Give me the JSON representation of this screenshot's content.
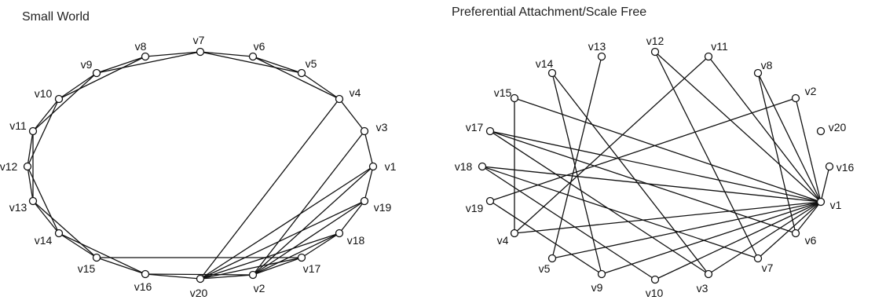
{
  "graphs": {
    "small_world": {
      "title": "Small World",
      "nodes": [
        "v1",
        "v2",
        "v3",
        "v4",
        "v5",
        "v6",
        "v7",
        "v8",
        "v9",
        "v10",
        "v11",
        "v12",
        "v13",
        "v14",
        "v15",
        "v16",
        "v17",
        "v18",
        "v19",
        "v20"
      ],
      "edges": [
        [
          "v1",
          "v3"
        ],
        [
          "v3",
          "v4"
        ],
        [
          "v4",
          "v5"
        ],
        [
          "v5",
          "v6"
        ],
        [
          "v6",
          "v7"
        ],
        [
          "v7",
          "v8"
        ],
        [
          "v8",
          "v9"
        ],
        [
          "v9",
          "v10"
        ],
        [
          "v10",
          "v11"
        ],
        [
          "v11",
          "v12"
        ],
        [
          "v12",
          "v13"
        ],
        [
          "v13",
          "v14"
        ],
        [
          "v14",
          "v15"
        ],
        [
          "v15",
          "v16"
        ],
        [
          "v16",
          "v20"
        ],
        [
          "v20",
          "v2"
        ],
        [
          "v2",
          "v17"
        ],
        [
          "v17",
          "v18"
        ],
        [
          "v18",
          "v19"
        ],
        [
          "v19",
          "v1"
        ],
        [
          "v7",
          "v9"
        ],
        [
          "v8",
          "v10"
        ],
        [
          "v6",
          "v4"
        ],
        [
          "v7",
          "v5"
        ],
        [
          "v9",
          "v11"
        ],
        [
          "v10",
          "v12"
        ],
        [
          "v11",
          "v13"
        ],
        [
          "v12",
          "v14"
        ],
        [
          "v13",
          "v15"
        ],
        [
          "v14",
          "v16"
        ],
        [
          "v15",
          "v17"
        ],
        [
          "v4",
          "v20"
        ],
        [
          "v3",
          "v2"
        ],
        [
          "v1",
          "v20"
        ],
        [
          "v1",
          "v2"
        ],
        [
          "v19",
          "v20"
        ],
        [
          "v19",
          "v2"
        ],
        [
          "v18",
          "v20"
        ],
        [
          "v18",
          "v2"
        ],
        [
          "v17",
          "v20"
        ],
        [
          "v16",
          "v2"
        ]
      ]
    },
    "scale_free": {
      "title": "Preferential Attachment/Scale Free",
      "nodes": [
        "v1",
        "v2",
        "v3",
        "v4",
        "v5",
        "v6",
        "v7",
        "v8",
        "v9",
        "v10",
        "v11",
        "v12",
        "v13",
        "v14",
        "v15",
        "v16",
        "v17",
        "v18",
        "v19",
        "v20"
      ],
      "edges": [
        [
          "v1",
          "v2"
        ],
        [
          "v1",
          "v8"
        ],
        [
          "v1",
          "v11"
        ],
        [
          "v1",
          "v12"
        ],
        [
          "v1",
          "v15"
        ],
        [
          "v1",
          "v17"
        ],
        [
          "v1",
          "v18"
        ],
        [
          "v1",
          "v4"
        ],
        [
          "v1",
          "v5"
        ],
        [
          "v1",
          "v9"
        ],
        [
          "v1",
          "v10"
        ],
        [
          "v1",
          "v3"
        ],
        [
          "v1",
          "v7"
        ],
        [
          "v1",
          "v6"
        ],
        [
          "v1",
          "v16"
        ],
        [
          "v13",
          "v5"
        ],
        [
          "v14",
          "v9"
        ],
        [
          "v14",
          "v3"
        ],
        [
          "v12",
          "v7"
        ],
        [
          "v11",
          "v4"
        ],
        [
          "v2",
          "v19"
        ],
        [
          "v8",
          "v6"
        ],
        [
          "v17",
          "v6"
        ],
        [
          "v18",
          "v10"
        ],
        [
          "v19",
          "v9"
        ],
        [
          "v15",
          "v4"
        ],
        [
          "v17",
          "v3"
        ],
        [
          "v18",
          "v7"
        ]
      ]
    }
  }
}
